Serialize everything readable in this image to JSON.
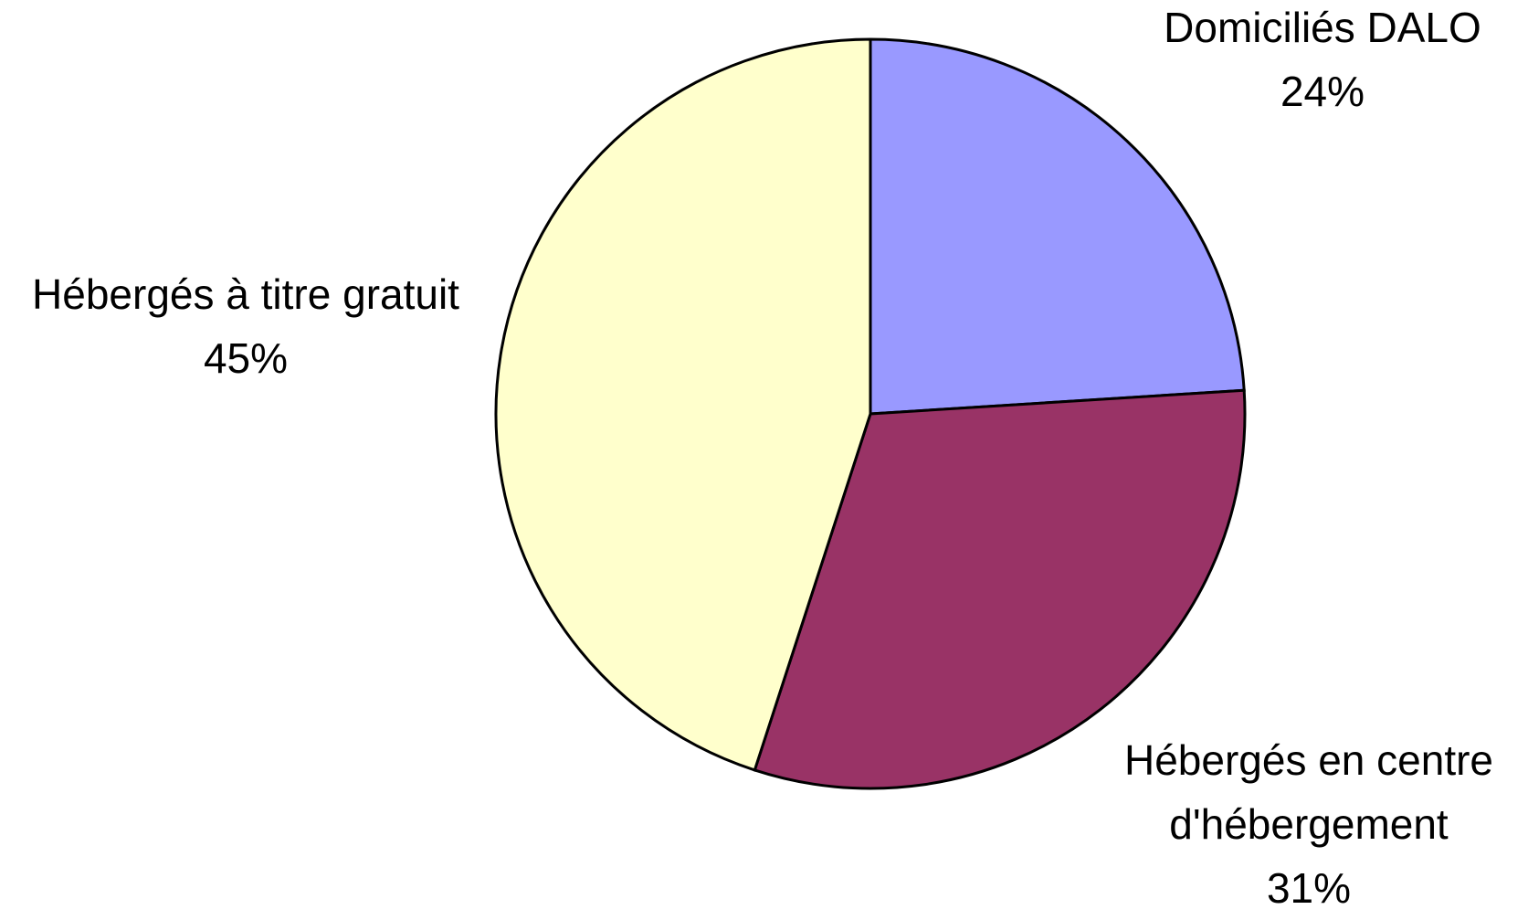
{
  "chart_data": {
    "type": "pie",
    "categories": [
      "Domiciliés DALO",
      "Hébergés en centre d'hébergement",
      "Hébergés à titre gratuit"
    ],
    "values": [
      24,
      31,
      45
    ],
    "value_labels": [
      "24%",
      "31%",
      "45%"
    ],
    "colors": [
      "#9999ff",
      "#993366",
      "#ffffcc"
    ]
  }
}
